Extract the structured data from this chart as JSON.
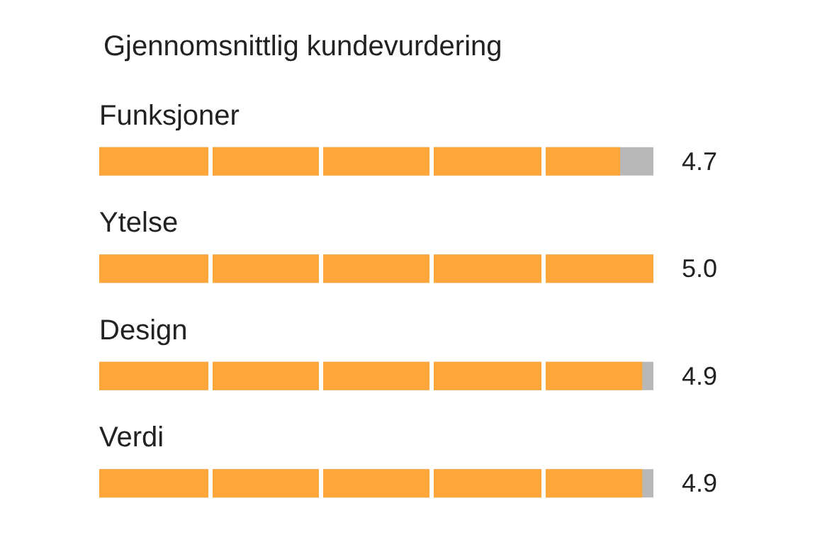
{
  "chart_data": {
    "type": "bar",
    "orientation": "horizontal",
    "title": "Gjennomsnittlig kundevurdering",
    "categories": [
      "Funksjoner",
      "Ytelse",
      "Design",
      "Verdi"
    ],
    "values": [
      4.7,
      5.0,
      4.9,
      4.9
    ],
    "value_labels": [
      "4.7",
      "5.0",
      "4.9",
      "4.9"
    ],
    "color": "#ffa63a",
    "xlim": [
      0,
      5
    ],
    "ref_lines": [
      {
        "axis": "x",
        "value": 1,
        "color": "#ffffff"
      },
      {
        "axis": "x",
        "value": 2,
        "color": "#ffffff"
      },
      {
        "axis": "x",
        "value": 3,
        "color": "#ffffff"
      },
      {
        "axis": "x",
        "value": 4,
        "color": "#ffffff"
      }
    ]
  }
}
